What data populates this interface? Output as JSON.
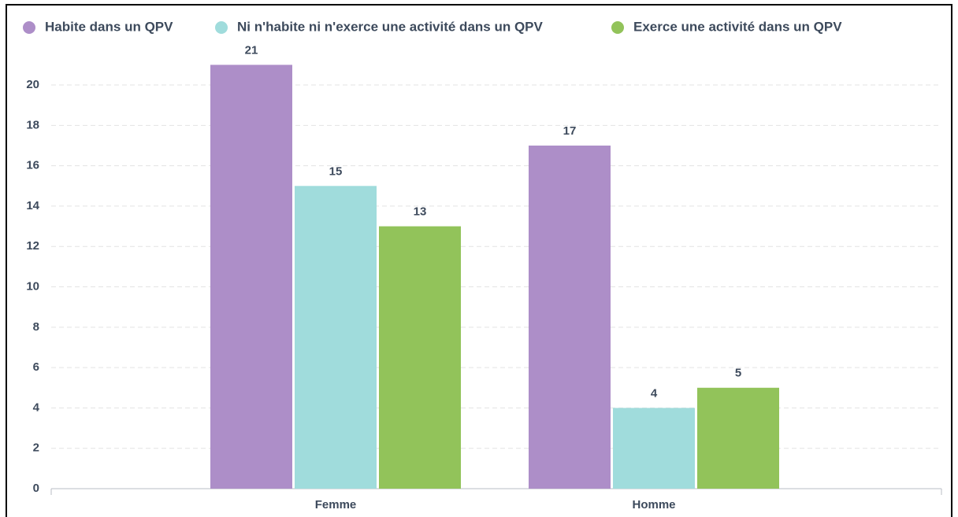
{
  "chart_data": {
    "type": "bar",
    "categories": [
      "Femme",
      "Homme"
    ],
    "series": [
      {
        "name": "Habite dans un QPV",
        "color": "#ad8ec8",
        "values": [
          21,
          17
        ]
      },
      {
        "name": "Ni n'habite ni n'exerce une activité dans un QPV",
        "color": "#a0dcdc",
        "values": [
          15,
          4
        ]
      },
      {
        "name": "Exerce une activité dans un QPV",
        "color": "#92c35a",
        "values": [
          13,
          5
        ]
      }
    ],
    "ylim": [
      0,
      21
    ],
    "yticks": [
      0,
      2,
      4,
      6,
      8,
      10,
      12,
      14,
      16,
      18,
      20
    ],
    "grid": true,
    "legend": "top"
  }
}
